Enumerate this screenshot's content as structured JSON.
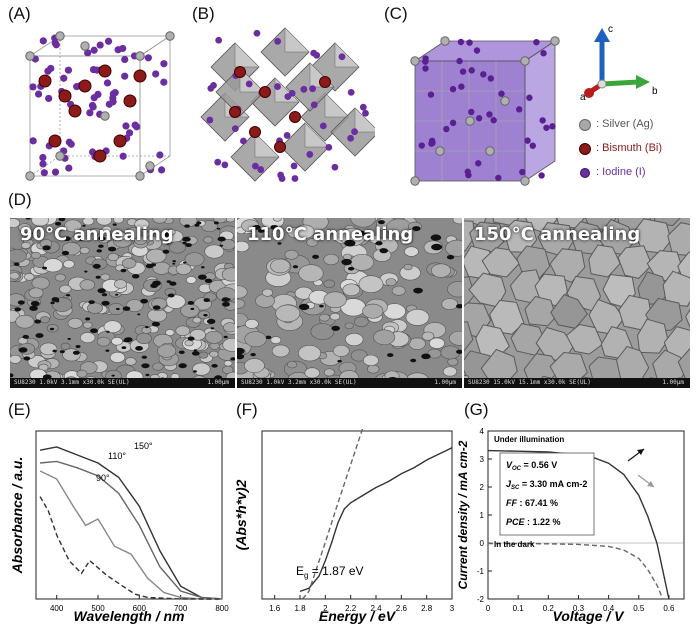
{
  "panels": {
    "A": "(A)",
    "B": "(B)",
    "C": "(C)",
    "D": "(D)",
    "E": "(E)",
    "F": "(F)",
    "G": "(G)"
  },
  "axes3d": {
    "a": "a",
    "b": "b",
    "c": "c"
  },
  "legend": [
    {
      "text": ": Silver (Ag)",
      "color": "#9a9a9a"
    },
    {
      "text": ": Bismuth (Bi)",
      "color": "#8b1a1a"
    },
    {
      "text": ": Iodine (I)",
      "color": "#6a2ea0"
    }
  ],
  "sem": [
    {
      "title": "90°C annealing",
      "info": "SU8230 1.0kV 3.1mm x30.0k SE(UL)",
      "scale": "1.00μm"
    },
    {
      "title": "110°C annealing",
      "info": "SU8230 1.0kV 3.2mm x30.0k SE(UL)",
      "scale": "1.00μm"
    },
    {
      "title": "150°C annealing",
      "info": "SU8230 15.0kV 15.1mm x30.0k SE(UL)",
      "scale": "1.00μm"
    }
  ],
  "chart_data": [
    {
      "type": "line",
      "panel": "E",
      "xlabel": "Wavelength / nm",
      "ylabel": "Absorbance / a.u.",
      "xlim": [
        350,
        800
      ],
      "xticks": [
        400,
        500,
        600,
        700,
        800
      ],
      "annotations": [
        "150°",
        "110°",
        "90°"
      ],
      "series": [
        {
          "name": "150°",
          "x": [
            360,
            400,
            450,
            500,
            550,
            600,
            650,
            700,
            750,
            800
          ],
          "y": [
            0.93,
            0.95,
            0.9,
            0.85,
            0.76,
            0.58,
            0.3,
            0.08,
            0.01,
            0.0
          ]
        },
        {
          "name": "110°",
          "x": [
            360,
            400,
            450,
            500,
            550,
            600,
            650,
            700,
            750,
            800
          ],
          "y": [
            0.85,
            0.86,
            0.82,
            0.77,
            0.66,
            0.46,
            0.2,
            0.05,
            0.01,
            0.0
          ]
        },
        {
          "name": "90°",
          "x": [
            360,
            400,
            440,
            470,
            500,
            540,
            580,
            620,
            660,
            700,
            750,
            800
          ],
          "y": [
            0.8,
            0.75,
            0.58,
            0.46,
            0.5,
            0.33,
            0.28,
            0.13,
            0.04,
            0.01,
            0.0,
            0.0
          ]
        },
        {
          "name": "",
          "x": [
            360,
            380,
            400,
            430,
            460,
            480,
            520,
            560,
            590,
            620,
            700,
            800
          ],
          "y": [
            0.64,
            0.55,
            0.4,
            0.24,
            0.16,
            0.24,
            0.15,
            0.08,
            0.03,
            0.01,
            0.0,
            0.0
          ]
        }
      ]
    },
    {
      "type": "line",
      "panel": "F",
      "xlabel": "Energy / eV",
      "ylabel": "(Abs*h*v)2",
      "xlim": [
        1.5,
        3.0
      ],
      "xticks": [
        1.6,
        1.8,
        2.0,
        2.2,
        2.4,
        2.6,
        2.8,
        3.0
      ],
      "annotation_main": "E",
      "annotation_sub": "g",
      "annotation_rest": " = 1.87 eV",
      "series": [
        {
          "name": "",
          "x": [
            1.8,
            1.87,
            1.95,
            2.0,
            2.05,
            2.1,
            2.15,
            2.2,
            2.3,
            2.4,
            2.5,
            2.6,
            2.7,
            2.8,
            2.9,
            3.0
          ],
          "y": [
            0.0,
            0.02,
            0.1,
            0.2,
            0.32,
            0.45,
            0.54,
            0.58,
            0.63,
            0.68,
            0.72,
            0.77,
            0.81,
            0.86,
            0.9,
            0.94
          ]
        },
        {
          "name": "",
          "x": [
            1.82,
            1.87,
            2.0,
            2.1,
            2.2,
            2.3
          ],
          "y": [
            -0.05,
            0.0,
            0.32,
            0.58,
            0.83,
            1.08
          ],
          "dashed": true
        }
      ]
    },
    {
      "type": "line",
      "panel": "G",
      "xlabel": "Voltage / V",
      "ylabel": "Current density / mA cm-2",
      "xlim": [
        0.0,
        0.65
      ],
      "ylim": [
        -2,
        4
      ],
      "xticks": [
        0.0,
        0.1,
        0.2,
        0.3,
        0.4,
        0.5,
        0.6
      ],
      "yticks": [
        -2,
        -1,
        0,
        1,
        2,
        3,
        4
      ],
      "labels": [
        "Under illumination",
        "In the dark"
      ],
      "metrics": {
        "voc": "= 0.56 V",
        "jsc": "= 3.30 mA cm-2",
        "ff": ": 67.41 %",
        "pce": ": 1.22 %"
      },
      "series": [
        {
          "name": "Under illumination",
          "x": [
            0.0,
            0.1,
            0.2,
            0.3,
            0.35,
            0.4,
            0.45,
            0.5,
            0.53,
            0.56,
            0.58,
            0.6
          ],
          "y": [
            3.3,
            3.28,
            3.25,
            3.15,
            3.05,
            2.85,
            2.45,
            1.7,
            0.95,
            0.0,
            -1.0,
            -2.0
          ]
        },
        {
          "name": "In the dark",
          "x": [
            0.0,
            0.1,
            0.2,
            0.3,
            0.4,
            0.45,
            0.5,
            0.53,
            0.56,
            0.58
          ],
          "y": [
            -0.02,
            -0.02,
            -0.03,
            -0.05,
            -0.12,
            -0.25,
            -0.55,
            -0.95,
            -1.5,
            -2.0
          ],
          "dashed": true
        }
      ]
    }
  ]
}
